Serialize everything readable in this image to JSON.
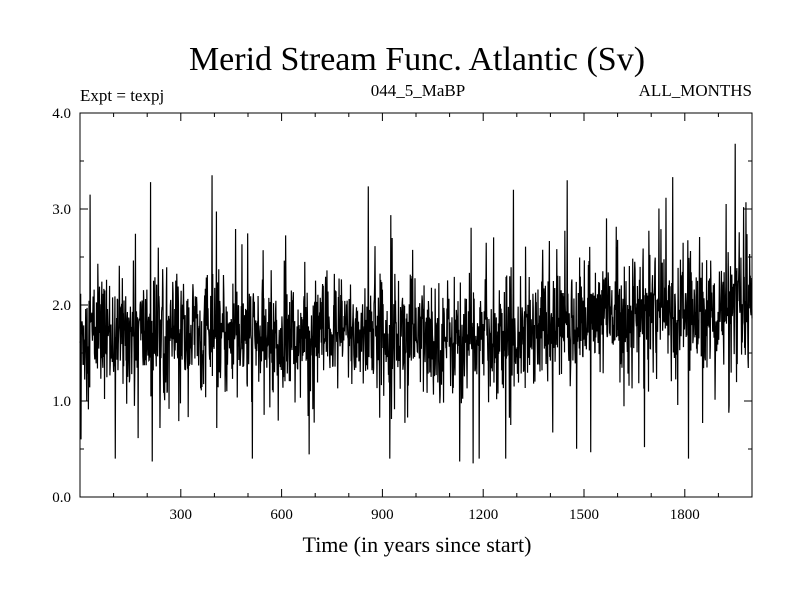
{
  "chart_data": {
    "type": "line",
    "title": "Merid Stream Func. Atlantic (Sv)",
    "subtitle_left": "Expt = texpj",
    "subtitle_center": "044_5_MaBP",
    "subtitle_right": "ALL_MONTHS",
    "xlabel": "Time (in years since start)",
    "ylabel": "",
    "xlim": [
      0,
      2000
    ],
    "ylim": [
      0.0,
      4.0
    ],
    "xticks": [
      300,
      600,
      900,
      1200,
      1500,
      1800
    ],
    "xtick_labels": [
      "300",
      "600",
      "900",
      "1200",
      "1500",
      "1800"
    ],
    "yticks": [
      0.0,
      1.0,
      2.0,
      3.0,
      4.0
    ],
    "ytick_labels": [
      "0.0",
      "1.0",
      "2.0",
      "3.0",
      "4.0"
    ],
    "grid": false,
    "series": [
      {
        "name": "Merid Stream Func. Atlantic",
        "color": "#000000",
        "segment_means": [
          {
            "x_start": 0,
            "x_end": 400,
            "mean": 1.7
          },
          {
            "x_start": 400,
            "x_end": 700,
            "mean": 1.65
          },
          {
            "x_start": 700,
            "x_end": 1000,
            "mean": 1.7
          },
          {
            "x_start": 1000,
            "x_end": 1300,
            "mean": 1.65
          },
          {
            "x_start": 1300,
            "x_end": 1500,
            "mean": 1.8
          },
          {
            "x_start": 1500,
            "x_end": 2000,
            "mean": 1.9
          }
        ],
        "spread": 0.3,
        "min_value": 0.35,
        "max_value": 3.68,
        "notable_points": [
          {
            "x": 3,
            "y": 0.6
          },
          {
            "x": 30,
            "y": 3.15
          },
          {
            "x": 210,
            "y": 3.28
          },
          {
            "x": 215,
            "y": 0.37
          },
          {
            "x": 1130,
            "y": 0.37
          },
          {
            "x": 1170,
            "y": 0.35
          },
          {
            "x": 1290,
            "y": 3.2
          },
          {
            "x": 1450,
            "y": 3.3
          },
          {
            "x": 1680,
            "y": 0.52
          },
          {
            "x": 1950,
            "y": 3.68
          },
          {
            "x": 1975,
            "y": 3.02
          }
        ]
      }
    ]
  }
}
